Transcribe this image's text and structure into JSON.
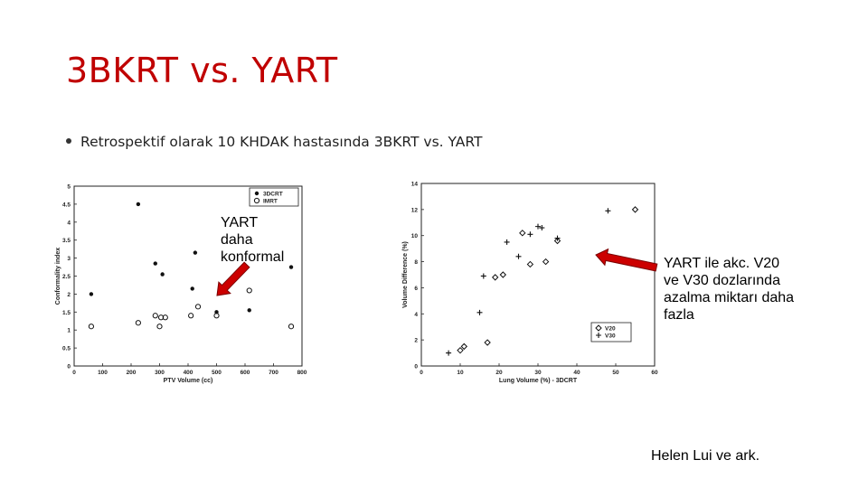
{
  "slide": {
    "title": "3BKRT vs. YART",
    "bullet": "Retrospektif olarak 10 KHDAK hastasında 3BKRT vs. YART",
    "annotation_left": [
      "YART",
      "daha",
      "konformal"
    ],
    "annotation_right": [
      "YART ile akc. V20",
      "ve V30 dozlarında",
      "azalma miktarı daha",
      "fazla"
    ],
    "credit": "Helen Lui ve ark.",
    "arrow_color": "#cc0000"
  },
  "chart_data": [
    {
      "type": "scatter",
      "xlabel": "PTV Volume (cc)",
      "ylabel": "Conformality index",
      "xlim": [
        0,
        800
      ],
      "ylim": [
        0,
        5
      ],
      "xticks": [
        0,
        100,
        200,
        300,
        400,
        500,
        600,
        700,
        800
      ],
      "yticks": [
        0,
        0.5,
        1,
        1.5,
        2,
        2.5,
        3,
        3.5,
        4,
        4.5,
        5
      ],
      "legend_position": "top-right",
      "series": [
        {
          "name": "3DCRT",
          "marker": "filled-circle",
          "points": [
            [
              60,
              2.0
            ],
            [
              225,
              4.5
            ],
            [
              285,
              2.85
            ],
            [
              310,
              2.55
            ],
            [
              415,
              2.15
            ],
            [
              425,
              3.15
            ],
            [
              500,
              1.5
            ],
            [
              615,
              1.55
            ],
            [
              762,
              2.75
            ]
          ]
        },
        {
          "name": "IMRT",
          "marker": "open-circle",
          "points": [
            [
              60,
              1.1
            ],
            [
              225,
              1.2
            ],
            [
              285,
              1.4
            ],
            [
              300,
              1.1
            ],
            [
              305,
              1.35
            ],
            [
              320,
              1.35
            ],
            [
              410,
              1.4
            ],
            [
              435,
              1.65
            ],
            [
              500,
              1.4
            ],
            [
              615,
              2.1
            ],
            [
              762,
              1.1
            ]
          ]
        }
      ]
    },
    {
      "type": "scatter",
      "xlabel": "Lung Volume (%) - 3DCRT",
      "ylabel": "Volume Difference (%)",
      "xlim": [
        0,
        60
      ],
      "ylim": [
        0,
        14
      ],
      "xticks": [
        0,
        10,
        20,
        30,
        40,
        50,
        60
      ],
      "yticks": [
        0,
        2,
        4,
        6,
        8,
        10,
        12,
        14
      ],
      "legend_position": "bottom-right",
      "series": [
        {
          "name": "V20",
          "marker": "diamond",
          "points": [
            [
              10,
              1.2
            ],
            [
              11,
              1.5
            ],
            [
              17,
              1.8
            ],
            [
              19,
              6.8
            ],
            [
              21,
              7.0
            ],
            [
              26,
              10.2
            ],
            [
              28,
              7.8
            ],
            [
              32,
              8.0
            ],
            [
              35,
              9.6
            ],
            [
              55,
              12.0
            ]
          ]
        },
        {
          "name": "V30",
          "marker": "plus",
          "points": [
            [
              7,
              1.0
            ],
            [
              15,
              4.1
            ],
            [
              16,
              6.9
            ],
            [
              22,
              9.5
            ],
            [
              25,
              8.4
            ],
            [
              28,
              10.1
            ],
            [
              30,
              10.7
            ],
            [
              31,
              10.6
            ],
            [
              35,
              9.8
            ],
            [
              48,
              11.9
            ]
          ]
        }
      ]
    }
  ]
}
